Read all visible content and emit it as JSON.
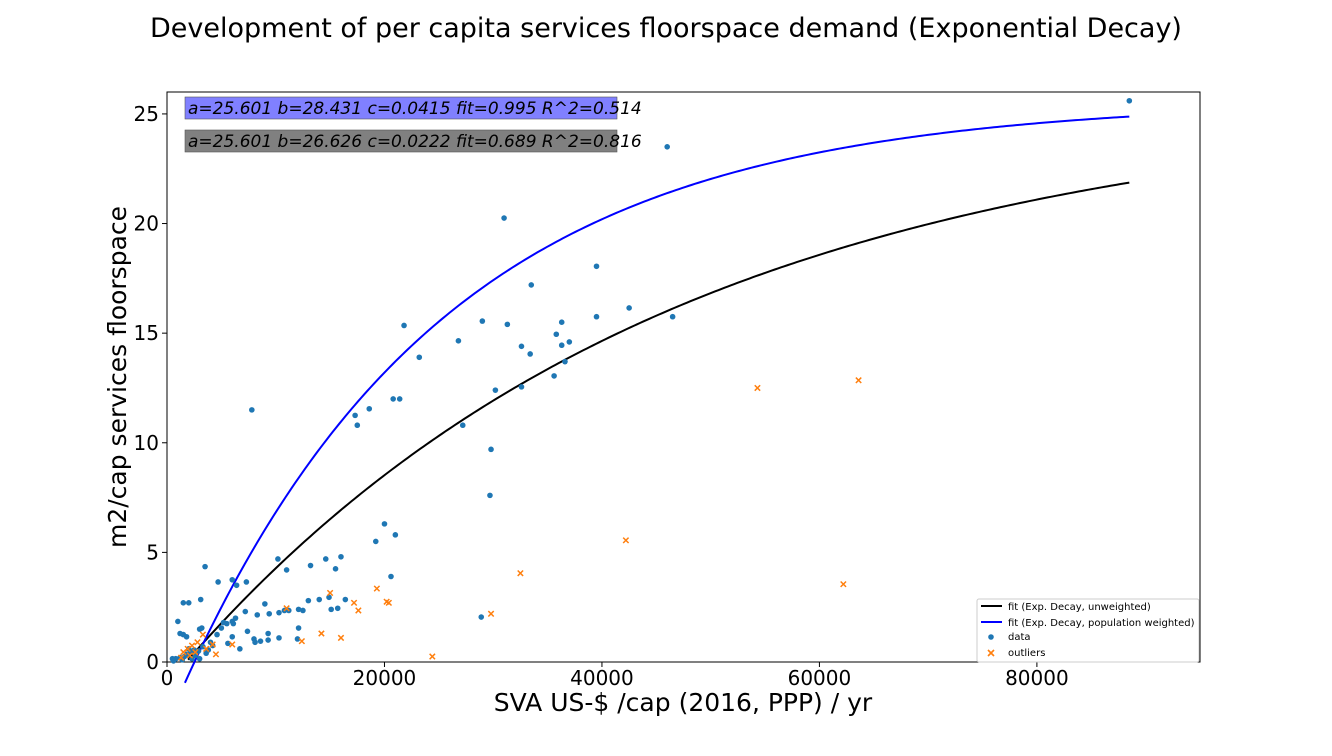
{
  "chart_data": {
    "type": "scatter",
    "title": "Development of per capita services floorspace demand (Exponential Decay)",
    "xlabel": "SVA US-$ /cap (2016, PPP) / yr",
    "ylabel": "m2/cap services floorspace",
    "xlim": [
      0,
      95000
    ],
    "ylim": [
      0,
      26
    ],
    "x_ticks": [
      0,
      20000,
      40000,
      60000,
      80000
    ],
    "y_ticks": [
      0,
      5,
      10,
      15,
      20,
      25
    ],
    "grid": false,
    "legend_position": "lower-right",
    "annotations": [
      {
        "text": "a=25.601 b=28.431 c=0.0415 fit=0.995 R^2=0.514",
        "color": "#8080ff"
      },
      {
        "text": "a=25.601 b=26.626 c=0.0222 fit=0.689 R^2=0.816",
        "color": "#808080"
      }
    ],
    "series": [
      {
        "name": "fit (Exp. Decay, unweighted)",
        "kind": "line",
        "color": "#000000",
        "formula": "a - b*exp(-c*x/1000)",
        "a": 25.601,
        "b": 26.626,
        "c": 0.0222,
        "x_range": [
          1950,
          88500
        ]
      },
      {
        "name": "fit (Exp. Decay, population weighted)",
        "kind": "line",
        "color": "#0000ff",
        "formula": "a - b*exp(-c*x/1000)",
        "a": 25.601,
        "b": 28.431,
        "c": 0.0415,
        "x_range": [
          1650,
          88500
        ]
      },
      {
        "name": "data",
        "kind": "scatter",
        "marker": "circle",
        "color": "#1f77b4",
        "points": [
          [
            88500,
            25.6
          ],
          [
            46000,
            23.5
          ],
          [
            31000,
            20.25
          ],
          [
            39500,
            18.05
          ],
          [
            33500,
            17.2
          ],
          [
            42500,
            16.15
          ],
          [
            46500,
            15.75
          ],
          [
            39500,
            15.75
          ],
          [
            21800,
            15.35
          ],
          [
            29000,
            15.55
          ],
          [
            31300,
            15.4
          ],
          [
            36300,
            15.5
          ],
          [
            35800,
            14.95
          ],
          [
            37000,
            14.6
          ],
          [
            26800,
            14.65
          ],
          [
            32600,
            14.4
          ],
          [
            36300,
            14.45
          ],
          [
            33400,
            14.05
          ],
          [
            23200,
            13.9
          ],
          [
            36600,
            13.7
          ],
          [
            35600,
            13.05
          ],
          [
            32600,
            12.55
          ],
          [
            30200,
            12.4
          ],
          [
            20800,
            12.0
          ],
          [
            21400,
            12.0
          ],
          [
            7800,
            11.5
          ],
          [
            18600,
            11.55
          ],
          [
            17300,
            11.25
          ],
          [
            17500,
            10.8
          ],
          [
            27200,
            10.8
          ],
          [
            29800,
            9.7
          ],
          [
            29700,
            7.6
          ],
          [
            20000,
            6.3
          ],
          [
            21000,
            5.8
          ],
          [
            19200,
            5.5
          ],
          [
            20600,
            3.9
          ],
          [
            28900,
            2.05
          ],
          [
            16000,
            4.8
          ],
          [
            14600,
            4.7
          ],
          [
            15500,
            4.25
          ],
          [
            10200,
            4.7
          ],
          [
            11000,
            4.2
          ],
          [
            13200,
            4.4
          ],
          [
            3500,
            4.35
          ],
          [
            4700,
            3.65
          ],
          [
            6000,
            3.75
          ],
          [
            6400,
            3.5
          ],
          [
            7300,
            3.65
          ],
          [
            14000,
            2.85
          ],
          [
            14900,
            2.95
          ],
          [
            16400,
            2.85
          ],
          [
            12500,
            2.35
          ],
          [
            12100,
            2.4
          ],
          [
            10800,
            2.35
          ],
          [
            10300,
            2.25
          ],
          [
            9400,
            2.2
          ],
          [
            8300,
            2.15
          ],
          [
            7200,
            2.3
          ],
          [
            9000,
            2.65
          ],
          [
            13000,
            2.8
          ],
          [
            15700,
            2.45
          ],
          [
            15100,
            2.4
          ],
          [
            1000,
            1.85
          ],
          [
            1500,
            2.7
          ],
          [
            2000,
            2.7
          ],
          [
            3100,
            2.85
          ],
          [
            1200,
            1.3
          ],
          [
            1500,
            1.25
          ],
          [
            1800,
            1.15
          ],
          [
            3000,
            1.5
          ],
          [
            3200,
            1.55
          ],
          [
            4600,
            1.25
          ],
          [
            5000,
            1.55
          ],
          [
            5500,
            1.75
          ],
          [
            6000,
            1.85
          ],
          [
            6300,
            2.0
          ],
          [
            6100,
            1.75
          ],
          [
            5200,
            1.8
          ],
          [
            7400,
            1.4
          ],
          [
            8000,
            1.05
          ],
          [
            8600,
            0.95
          ],
          [
            8100,
            0.9
          ],
          [
            9300,
            1.0
          ],
          [
            9300,
            1.3
          ],
          [
            10300,
            1.1
          ],
          [
            11200,
            2.35
          ],
          [
            12000,
            1.05
          ],
          [
            12100,
            1.55
          ],
          [
            6000,
            1.15
          ],
          [
            6700,
            0.6
          ],
          [
            5600,
            0.85
          ],
          [
            4200,
            0.75
          ],
          [
            3600,
            0.4
          ],
          [
            2900,
            0.5
          ],
          [
            2500,
            0.55
          ],
          [
            2200,
            0.45
          ],
          [
            1600,
            0.25
          ],
          [
            1200,
            0.2
          ],
          [
            800,
            0.15
          ],
          [
            500,
            0.15
          ],
          [
            2000,
            0.6
          ],
          [
            1800,
            0.35
          ],
          [
            2600,
            0.3
          ],
          [
            3300,
            0.7
          ],
          [
            4000,
            0.9
          ],
          [
            2300,
            0.15
          ],
          [
            1400,
            0.1
          ],
          [
            600,
            0.05
          ],
          [
            3000,
            0.15
          ],
          [
            3800,
            0.55
          ]
        ]
      },
      {
        "name": "outliers",
        "kind": "scatter",
        "marker": "x",
        "color": "#ff7f0e",
        "points": [
          [
            63600,
            12.85
          ],
          [
            54300,
            12.5
          ],
          [
            42200,
            5.55
          ],
          [
            62200,
            3.55
          ],
          [
            32500,
            4.05
          ],
          [
            19300,
            3.35
          ],
          [
            15000,
            3.15
          ],
          [
            20200,
            2.75
          ],
          [
            20400,
            2.7
          ],
          [
            17200,
            2.7
          ],
          [
            17600,
            2.35
          ],
          [
            11000,
            2.45
          ],
          [
            14200,
            1.3
          ],
          [
            16000,
            1.1
          ],
          [
            12400,
            0.95
          ],
          [
            29800,
            2.2
          ],
          [
            24400,
            0.25
          ],
          [
            6000,
            0.8
          ],
          [
            4500,
            0.35
          ],
          [
            3300,
            1.25
          ],
          [
            2800,
            0.9
          ],
          [
            2300,
            0.75
          ],
          [
            1900,
            0.6
          ],
          [
            1500,
            0.45
          ],
          [
            2100,
            0.3
          ],
          [
            1300,
            0.2
          ],
          [
            3600,
            0.6
          ],
          [
            2600,
            0.45
          ],
          [
            4200,
            0.8
          ]
        ]
      }
    ]
  }
}
